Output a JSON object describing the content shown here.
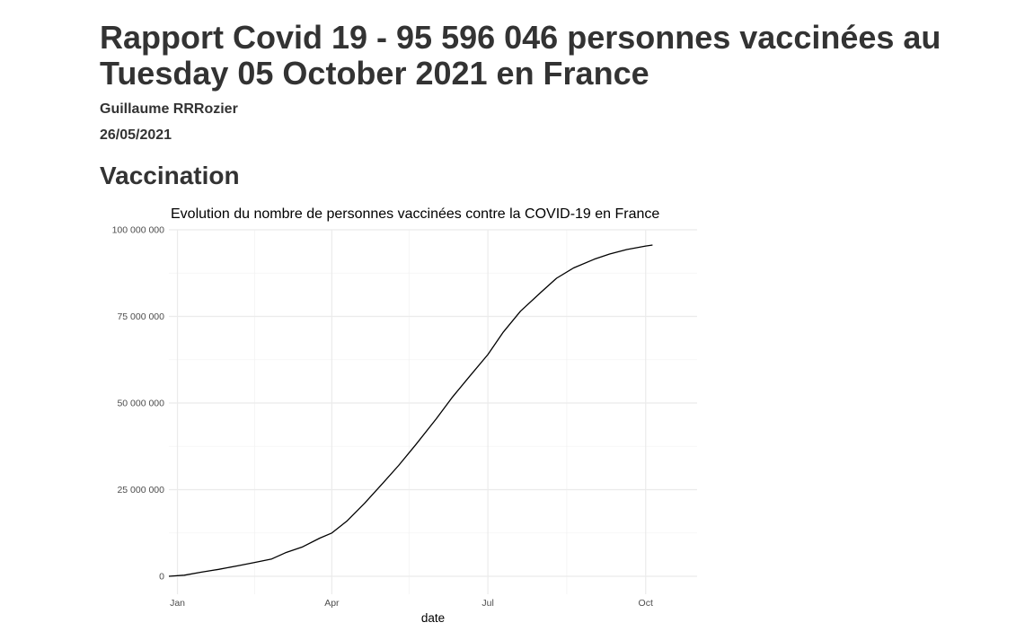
{
  "report": {
    "title": "Rapport Covid 19 - 95 596 046 personnes vaccinées au Tuesday 05 October 2021 en France",
    "author": "Guillaume RRRozier",
    "date": "26/05/2021",
    "section": "Vaccination"
  },
  "chart_data": {
    "type": "line",
    "title": "Evolution du nombre de personnes vaccinées contre la COVID-19 en France",
    "xlabel": "date",
    "ylabel": "",
    "x_ticks": [
      "Jan",
      "Apr",
      "Jul",
      "Oct"
    ],
    "y_ticks": [
      "0",
      "25 000 000",
      "50 000 000",
      "75 000 000",
      "100 000 000"
    ],
    "ylim": [
      0,
      100000000
    ],
    "xlim": [
      "2020-12-27",
      "2021-10-31"
    ],
    "grid": true,
    "colors": {
      "line": "#000000",
      "grid": "#ebebeb",
      "text": "#4d4d4d"
    },
    "series": [
      {
        "x": [
          "2020-12-27",
          "2021-01-05",
          "2021-01-15",
          "2021-01-25",
          "2021-02-05",
          "2021-02-15",
          "2021-02-25",
          "2021-03-05",
          "2021-03-15",
          "2021-03-25",
          "2021-04-01",
          "2021-04-10",
          "2021-04-20",
          "2021-05-01",
          "2021-05-10",
          "2021-05-20",
          "2021-06-01",
          "2021-06-10",
          "2021-06-20",
          "2021-07-01",
          "2021-07-10",
          "2021-07-20",
          "2021-08-01",
          "2021-08-10",
          "2021-08-20",
          "2021-09-01",
          "2021-09-10",
          "2021-09-20",
          "2021-10-01",
          "2021-10-05"
        ],
        "y": [
          0,
          300000,
          1200000,
          2000000,
          3000000,
          4000000,
          5000000,
          6800000,
          8500000,
          11000000,
          12500000,
          16000000,
          21000000,
          27000000,
          32000000,
          38000000,
          45500000,
          51500000,
          57500000,
          64000000,
          70500000,
          76500000,
          82000000,
          86000000,
          89000000,
          91500000,
          93000000,
          94300000,
          95300000,
          95596046
        ]
      }
    ]
  }
}
